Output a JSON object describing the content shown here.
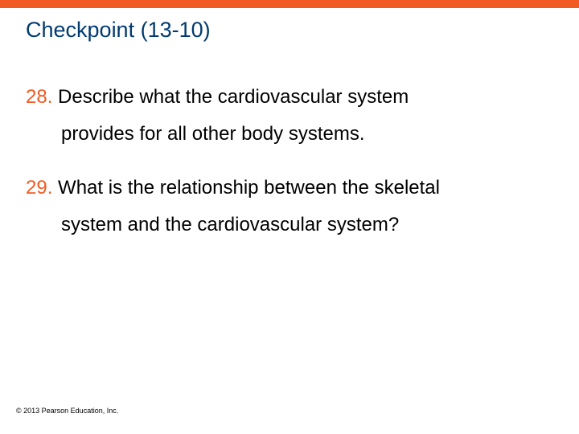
{
  "accent_color": "#f15a22",
  "title_color": "#003a70",
  "text_color": "#000000",
  "title": "Checkpoint (13-10)",
  "items": [
    {
      "num": "28.",
      "line1": "Describe what the cardiovascular system",
      "line2": "provides for all other body systems."
    },
    {
      "num": "29.",
      "line1": "What is the relationship between the skeletal",
      "line2": "system and the cardiovascular system?"
    }
  ],
  "copyright": "© 2013 Pearson Education, Inc."
}
